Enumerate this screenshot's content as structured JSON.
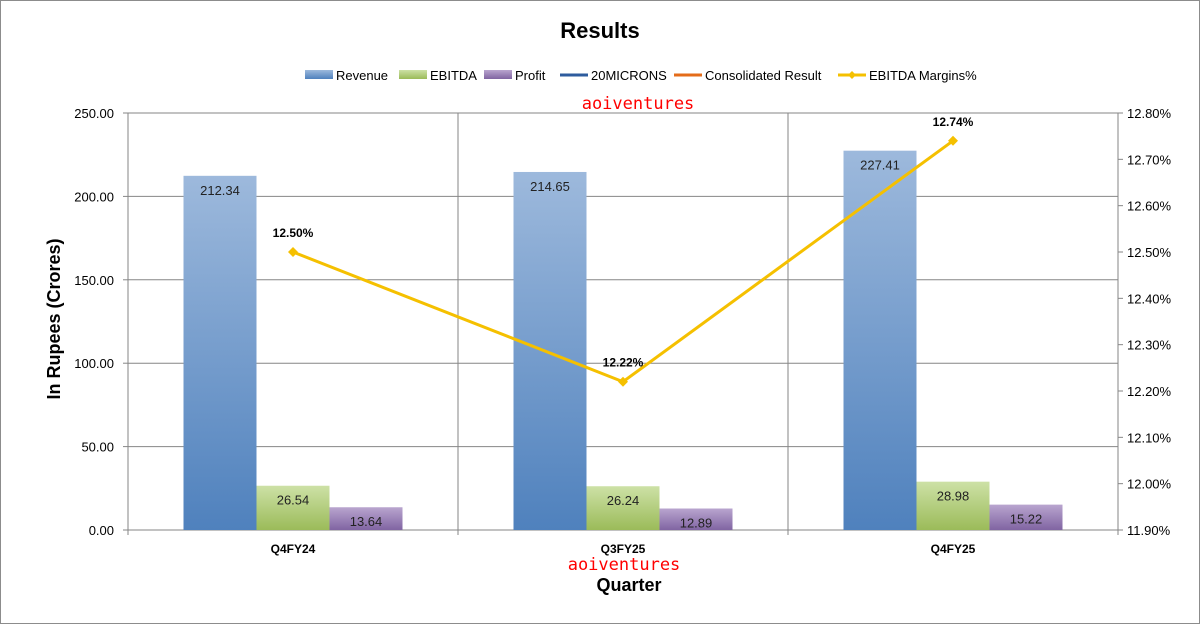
{
  "chart_data": {
    "type": "bar",
    "title": "Results",
    "xlabel": "Quarter",
    "ylabel": "In Rupees (Crores)",
    "categories": [
      "Q4FY24",
      "Q3FY25",
      "Q4FY25"
    ],
    "ylim": [
      0,
      250
    ],
    "yticks": [
      "0.00",
      "50.00",
      "100.00",
      "150.00",
      "200.00",
      "250.00"
    ],
    "y2lim": [
      11.9,
      12.8
    ],
    "y2ticks": [
      "11.90%",
      "12.00%",
      "12.10%",
      "12.20%",
      "12.30%",
      "12.40%",
      "12.50%",
      "12.60%",
      "12.70%",
      "12.80%"
    ],
    "grid": true,
    "legend_position": "top",
    "series": [
      {
        "name": "Revenue",
        "type": "bar",
        "values": [
          212.34,
          214.65,
          227.41
        ],
        "labels": [
          "212.34",
          "214.65",
          "227.41"
        ],
        "color": "#4f81bd"
      },
      {
        "name": "EBITDA",
        "type": "bar",
        "values": [
          26.54,
          26.24,
          28.98
        ],
        "labels": [
          "26.54",
          "26.24",
          "28.98"
        ],
        "color": "#9bbb59"
      },
      {
        "name": "Profit",
        "type": "bar",
        "values": [
          13.64,
          12.89,
          15.22
        ],
        "labels": [
          "13.64",
          "12.89",
          "15.22"
        ],
        "color": "#8064a2"
      },
      {
        "name": "20MICRONS",
        "type": "legend-only",
        "color": "#2e5c9e"
      },
      {
        "name": "Consolidated Result",
        "type": "legend-only",
        "color": "#e46c1a"
      },
      {
        "name": "EBITDA Margins%",
        "type": "line",
        "axis": "secondary",
        "values": [
          12.5,
          12.22,
          12.74
        ],
        "labels": [
          "12.50%",
          "12.22%",
          "12.74%"
        ],
        "color": "#f5c000"
      }
    ]
  },
  "watermarks": [
    "aoiventures",
    "aoiventures"
  ]
}
